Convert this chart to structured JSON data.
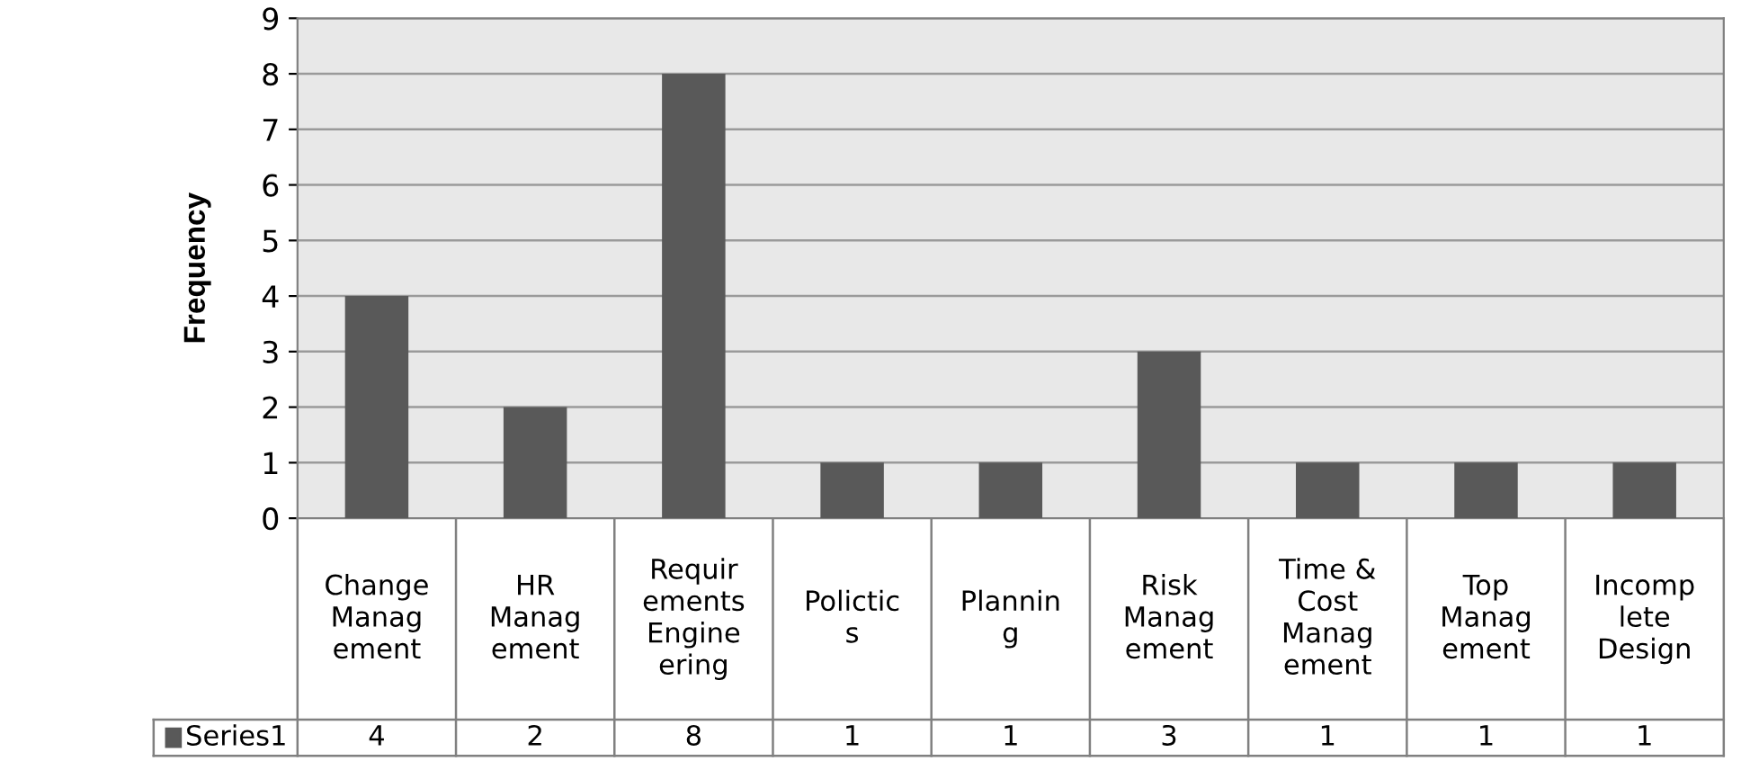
{
  "chart_data": {
    "type": "bar",
    "ylabel": "Frequency",
    "categories": [
      "Change\nManag\nement",
      "HR\nManag\nement",
      "Requir\nements\nEngine\nering",
      "Polictic\ns",
      "Plannin\ng",
      "Risk\nManag\nement",
      "Time &\nCost\nManag\nement",
      "Top\nManag\nement",
      "Incomp\nlete\nDesign"
    ],
    "series": [
      {
        "name": "Series1",
        "color": "#595959",
        "values": [
          4,
          2,
          8,
          1,
          1,
          3,
          1,
          1,
          1
        ]
      }
    ],
    "ylim": [
      0,
      9
    ],
    "yticks": [
      0,
      1,
      2,
      3,
      4,
      5,
      6,
      7,
      8,
      9
    ],
    "grid": "y",
    "data_labels": true
  }
}
